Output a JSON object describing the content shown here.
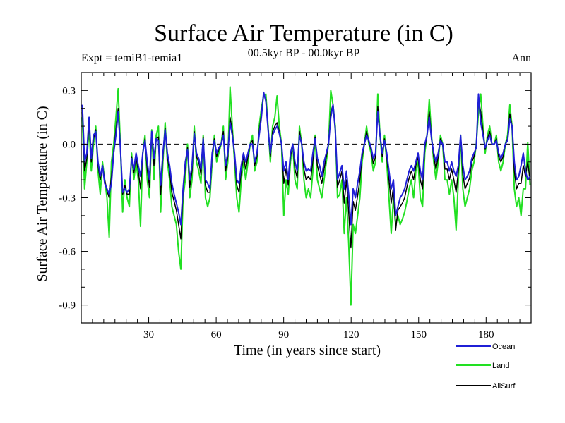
{
  "chart_data": {
    "type": "line",
    "title": "Surface Air Temperature (in C)",
    "subtitle": "00.5kyr BP - 00.0kyr BP",
    "expt_label": "Expt = temiB1-temia1",
    "season_label": "Ann",
    "xlabel": "Time (in years since start)",
    "ylabel": "Surface Air Temperature (in C)",
    "xlim": [
      0,
      200
    ],
    "ylim": [
      -1.0,
      0.4
    ],
    "x_ticks": [
      30,
      60,
      90,
      120,
      150,
      180
    ],
    "x_tick_labels": [
      "30",
      "60",
      "90",
      "120",
      "150",
      "180"
    ],
    "y_ticks": [
      0.3,
      0.0,
      -0.3,
      -0.6,
      -0.9
    ],
    "y_tick_labels": [
      "0.3",
      "0.0",
      "-0.3",
      "-0.6",
      "-0.9"
    ],
    "reference_line": 0.0,
    "series": [
      {
        "name": "Ocean",
        "color": "#1f1fd6",
        "values": [
          0.22,
          -0.1,
          -0.05,
          0.15,
          -0.08,
          0.05,
          0.07,
          -0.1,
          -0.18,
          -0.12,
          -0.22,
          -0.25,
          -0.28,
          -0.22,
          -0.05,
          0.05,
          0.18,
          -0.02,
          -0.27,
          -0.25,
          -0.27,
          -0.25,
          -0.08,
          -0.14,
          -0.05,
          -0.12,
          -0.18,
          -0.05,
          0.02,
          -0.1,
          -0.2,
          0.07,
          -0.08,
          0.03,
          0.02,
          -0.23,
          -0.05,
          0.08,
          -0.05,
          -0.12,
          -0.22,
          -0.28,
          -0.33,
          -0.38,
          -0.45,
          -0.25,
          -0.1,
          -0.03,
          -0.2,
          -0.12,
          0.06,
          -0.05,
          -0.08,
          -0.14,
          0.03,
          -0.2,
          -0.22,
          -0.25,
          -0.05,
          0.02,
          -0.05,
          -0.02,
          0.0,
          0.05,
          -0.12,
          -0.05,
          0.12,
          0.05,
          -0.05,
          -0.2,
          -0.22,
          -0.12,
          -0.05,
          -0.1,
          -0.05,
          0.0,
          0.0,
          -0.1,
          -0.05,
          0.05,
          0.15,
          0.29,
          0.24,
          0.08,
          -0.05,
          0.05,
          0.08,
          0.1,
          0.06,
          0.0,
          -0.15,
          -0.1,
          -0.2,
          -0.05,
          0.0,
          -0.1,
          -0.15,
          0.05,
          0.0,
          -0.1,
          -0.15,
          -0.14,
          -0.15,
          -0.05,
          0.03,
          -0.08,
          -0.12,
          -0.18,
          -0.1,
          -0.05,
          0.0,
          0.15,
          0.22,
          0.08,
          -0.2,
          -0.16,
          -0.12,
          -0.25,
          -0.15,
          -0.28,
          -0.45,
          -0.25,
          -0.3,
          -0.22,
          -0.15,
          -0.05,
          0.0,
          0.05,
          0.02,
          -0.02,
          -0.08,
          -0.05,
          0.18,
          0.05,
          -0.05,
          0.02,
          -0.05,
          -0.15,
          -0.25,
          -0.2,
          -0.4,
          -0.35,
          -0.3,
          -0.28,
          -0.25,
          -0.2,
          -0.15,
          -0.12,
          -0.15,
          -0.1,
          -0.05,
          -0.15,
          -0.2,
          0.0,
          0.05,
          0.15,
          0.03,
          -0.05,
          -0.1,
          -0.05,
          0.02,
          0.0,
          -0.1,
          -0.1,
          -0.15,
          -0.1,
          -0.15,
          -0.18,
          -0.12,
          0.05,
          -0.12,
          -0.2,
          -0.18,
          -0.15,
          -0.08,
          -0.05,
          -0.02,
          0.28,
          0.12,
          0.05,
          -0.02,
          0.02,
          0.05,
          0.0,
          0.0,
          0.02,
          -0.05,
          -0.08,
          -0.05,
          0.0,
          0.02,
          0.14,
          0.1,
          -0.1,
          -0.2,
          -0.18,
          -0.12,
          -0.05,
          -0.15,
          -0.2,
          -0.18
        ]
      },
      {
        "name": "Land",
        "color": "#22e022",
        "values": [
          0.15,
          -0.25,
          -0.1,
          0.1,
          -0.15,
          0.0,
          0.1,
          -0.15,
          -0.28,
          -0.1,
          -0.2,
          -0.3,
          -0.52,
          -0.1,
          0.0,
          0.15,
          0.31,
          0.0,
          -0.38,
          -0.2,
          -0.3,
          -0.35,
          -0.05,
          -0.2,
          -0.1,
          -0.2,
          -0.46,
          -0.05,
          0.05,
          -0.2,
          -0.3,
          0.08,
          -0.2,
          0.05,
          0.1,
          -0.38,
          -0.1,
          0.12,
          -0.1,
          -0.2,
          -0.35,
          -0.4,
          -0.45,
          -0.6,
          -0.7,
          -0.3,
          -0.2,
          0.0,
          -0.3,
          -0.2,
          0.1,
          -0.1,
          -0.15,
          -0.22,
          0.05,
          -0.3,
          -0.35,
          -0.3,
          -0.1,
          0.05,
          -0.1,
          -0.05,
          0.0,
          0.1,
          -0.2,
          -0.1,
          0.32,
          0.1,
          -0.1,
          -0.3,
          -0.38,
          -0.2,
          -0.1,
          -0.2,
          -0.1,
          0.0,
          0.05,
          -0.15,
          -0.1,
          0.1,
          0.2,
          0.27,
          0.28,
          0.1,
          -0.1,
          0.1,
          0.15,
          0.27,
          0.1,
          0.0,
          -0.4,
          -0.2,
          -0.28,
          -0.1,
          0.0,
          -0.2,
          -0.25,
          0.1,
          0.0,
          -0.2,
          -0.3,
          -0.25,
          -0.3,
          -0.15,
          0.05,
          -0.2,
          -0.25,
          -0.3,
          -0.2,
          -0.1,
          0.0,
          0.3,
          0.22,
          0.1,
          -0.3,
          -0.28,
          -0.2,
          -0.5,
          -0.3,
          -0.55,
          -0.9,
          -0.45,
          -0.5,
          -0.4,
          -0.3,
          -0.1,
          0.0,
          0.1,
          0.0,
          -0.05,
          -0.15,
          -0.1,
          0.28,
          0.05,
          -0.1,
          0.05,
          -0.1,
          -0.3,
          -0.5,
          -0.3,
          -0.45,
          -0.4,
          -0.45,
          -0.42,
          -0.38,
          -0.32,
          -0.25,
          -0.2,
          -0.3,
          -0.15,
          -0.1,
          -0.3,
          -0.35,
          -0.05,
          0.05,
          0.25,
          0.05,
          -0.1,
          -0.2,
          -0.1,
          0.05,
          0.0,
          -0.2,
          -0.2,
          -0.28,
          -0.2,
          -0.3,
          -0.48,
          -0.2,
          0.05,
          -0.25,
          -0.35,
          -0.3,
          -0.25,
          -0.15,
          -0.1,
          0.0,
          0.18,
          0.28,
          0.1,
          -0.05,
          0.05,
          0.1,
          0.0,
          0.0,
          0.05,
          -0.1,
          -0.15,
          -0.1,
          0.0,
          0.05,
          0.22,
          0.1,
          -0.25,
          -0.35,
          -0.3,
          -0.4,
          -0.25,
          -0.25,
          0.01,
          -0.23
        ]
      },
      {
        "name": "AllSurf",
        "color": "#000000",
        "values": [
          0.18,
          -0.15,
          -0.08,
          0.12,
          -0.1,
          0.03,
          0.08,
          -0.12,
          -0.2,
          -0.12,
          -0.2,
          -0.26,
          -0.3,
          -0.18,
          -0.04,
          0.08,
          0.2,
          -0.01,
          -0.28,
          -0.23,
          -0.28,
          -0.28,
          -0.07,
          -0.16,
          -0.07,
          -0.15,
          -0.25,
          -0.05,
          0.03,
          -0.14,
          -0.24,
          0.07,
          -0.12,
          0.03,
          0.04,
          -0.28,
          -0.07,
          0.09,
          -0.07,
          -0.15,
          -0.27,
          -0.32,
          -0.37,
          -0.45,
          -0.53,
          -0.27,
          -0.13,
          -0.02,
          -0.24,
          -0.15,
          0.07,
          -0.07,
          -0.1,
          -0.17,
          0.04,
          -0.23,
          -0.27,
          -0.27,
          -0.07,
          0.03,
          -0.07,
          -0.03,
          0.0,
          0.07,
          -0.15,
          -0.07,
          0.15,
          0.07,
          -0.07,
          -0.23,
          -0.27,
          -0.15,
          -0.07,
          -0.14,
          -0.07,
          0.0,
          0.02,
          -0.12,
          -0.07,
          0.07,
          0.17,
          0.28,
          0.25,
          0.09,
          -0.07,
          0.07,
          0.1,
          0.12,
          0.07,
          0.0,
          -0.22,
          -0.14,
          -0.23,
          -0.07,
          0.0,
          -0.14,
          -0.19,
          0.07,
          0.0,
          -0.14,
          -0.2,
          -0.18,
          -0.2,
          -0.09,
          0.04,
          -0.12,
          -0.17,
          -0.22,
          -0.14,
          -0.07,
          0.0,
          0.18,
          0.22,
          0.09,
          -0.24,
          -0.2,
          -0.15,
          -0.33,
          -0.2,
          -0.38,
          -0.58,
          -0.32,
          -0.37,
          -0.29,
          -0.2,
          -0.07,
          0.0,
          0.07,
          0.01,
          -0.03,
          -0.11,
          -0.07,
          0.21,
          0.05,
          -0.07,
          0.03,
          -0.07,
          -0.2,
          -0.33,
          -0.24,
          -0.48,
          -0.37,
          -0.35,
          -0.33,
          -0.3,
          -0.24,
          -0.19,
          -0.15,
          -0.2,
          -0.12,
          -0.07,
          -0.2,
          -0.25,
          -0.02,
          0.05,
          0.18,
          0.04,
          -0.07,
          -0.14,
          -0.07,
          0.03,
          0.0,
          -0.14,
          -0.14,
          -0.2,
          -0.14,
          -0.2,
          -0.27,
          -0.15,
          0.05,
          -0.17,
          -0.25,
          -0.22,
          -0.19,
          -0.1,
          -0.07,
          -0.01,
          0.25,
          0.18,
          0.07,
          -0.03,
          0.03,
          0.07,
          0.0,
          0.0,
          0.03,
          -0.07,
          -0.1,
          -0.07,
          0.0,
          0.03,
          0.17,
          0.1,
          -0.15,
          -0.25,
          -0.22,
          -0.22,
          -0.12,
          -0.18,
          -0.1,
          -0.2
        ]
      }
    ]
  }
}
